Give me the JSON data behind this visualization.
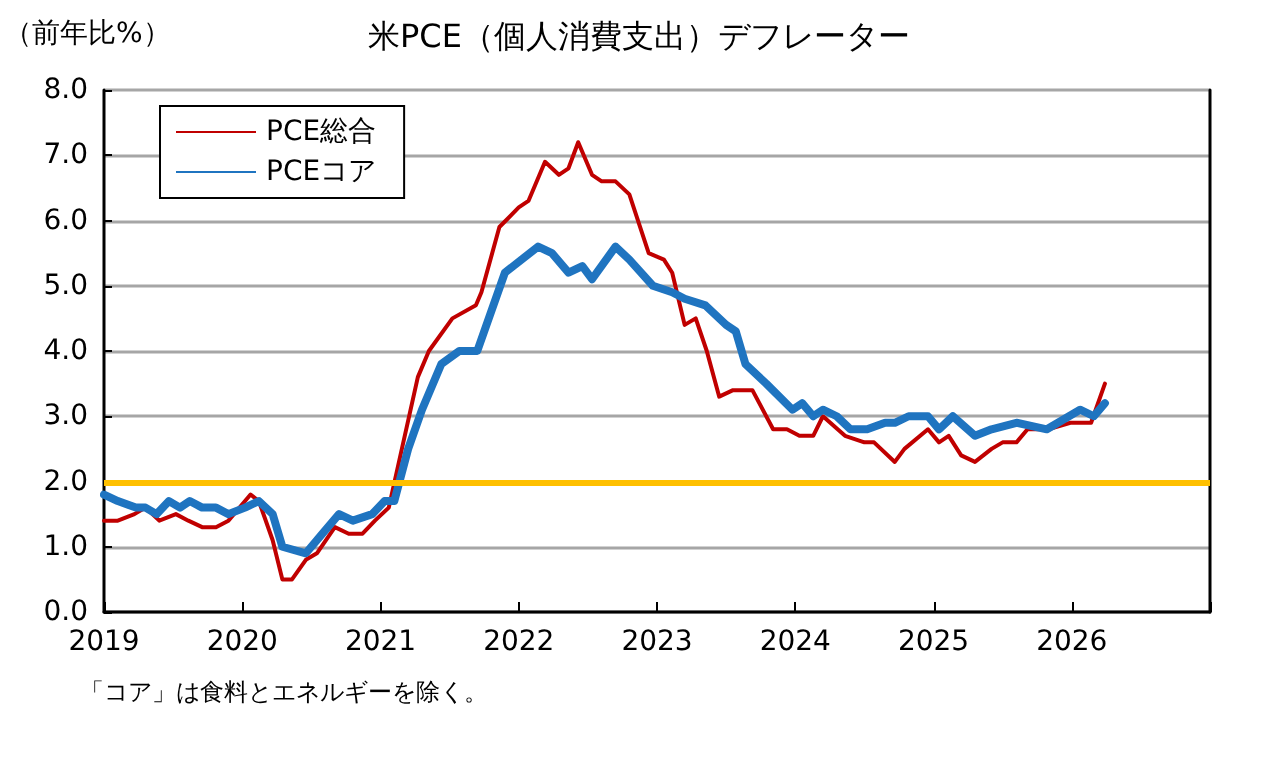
{
  "chart_data": {
    "type": "line",
    "title": "米PCE（個人消費支出）デフレーター",
    "ylabel": "（前年比%）",
    "annotations": [
      "「コア」は食料とエネルギーを除く。"
    ],
    "xlim": [
      2019,
      2027
    ],
    "xticks": [
      2019,
      2020,
      2021,
      2022,
      2023,
      2024,
      2025,
      2026,
      {
        "value": 2027,
        "label": null
      }
    ],
    "ylim": [
      0,
      8
    ],
    "yticks": [
      {
        "value": 0,
        "label": "0.0"
      },
      {
        "value": 1,
        "label": "1.0"
      },
      {
        "value": 2,
        "label": "2.0"
      },
      {
        "value": 3,
        "label": "3.0"
      },
      {
        "value": 4,
        "label": "4.0"
      },
      {
        "value": 5,
        "label": "5.0"
      },
      {
        "value": 6,
        "label": "6.0"
      },
      {
        "value": 7,
        "label": "7.0"
      },
      {
        "value": 8,
        "label": "8.0"
      }
    ],
    "grid": "y",
    "legend": "top left",
    "marker": "none",
    "line_style": "solid",
    "ref_lines": [
      {
        "axis": "y",
        "value": 2,
        "color": "#ffc000"
      }
    ],
    "series": [
      {
        "name": "PCE総合",
        "color": "#c00000",
        "x": [
          2019.0,
          2019.1,
          2019.22,
          2019.3,
          2019.4,
          2019.52,
          2019.61,
          2019.71,
          2019.81,
          2019.9,
          2020.06,
          2020.12,
          2020.22,
          2020.29,
          2020.36,
          2020.46,
          2020.54,
          2020.67,
          2020.77,
          2020.87,
          2020.96,
          2021.06,
          2021.27,
          2021.35,
          2021.52,
          2021.69,
          2021.73,
          2021.86,
          2022.0,
          2022.07,
          2022.19,
          2022.29,
          2022.36,
          2022.43,
          2022.53,
          2022.6,
          2022.7,
          2022.8,
          2022.94,
          2023.05,
          2023.11,
          2023.2,
          2023.28,
          2023.36,
          2023.45,
          2023.55,
          2023.69,
          2023.84,
          2023.94,
          2024.03,
          2024.13,
          2024.2,
          2024.36,
          2024.5,
          2024.57,
          2024.72,
          2024.79,
          2024.96,
          2025.04,
          2025.11,
          2025.2,
          2025.3,
          2025.42,
          2025.5,
          2025.6,
          2025.68,
          2025.83,
          2025.99,
          2026.14,
          2026.24
        ],
        "values": [
          1.4,
          1.4,
          1.5,
          1.6,
          1.4,
          1.5,
          1.4,
          1.3,
          1.3,
          1.4,
          1.8,
          1.7,
          1.1,
          0.5,
          0.5,
          0.8,
          0.9,
          1.3,
          1.2,
          1.2,
          1.4,
          1.6,
          3.6,
          4.0,
          4.5,
          4.7,
          4.9,
          5.9,
          6.2,
          6.3,
          6.9,
          6.7,
          6.8,
          7.2,
          6.7,
          6.6,
          6.6,
          6.4,
          5.5,
          5.4,
          5.2,
          4.4,
          4.5,
          4.0,
          3.3,
          3.4,
          3.4,
          2.8,
          2.8,
          2.7,
          2.7,
          3.0,
          2.7,
          2.6,
          2.6,
          2.3,
          2.5,
          2.8,
          2.6,
          2.7,
          2.4,
          2.3,
          2.5,
          2.6,
          2.6,
          2.8,
          2.8,
          2.9,
          2.9,
          3.5
        ]
      },
      {
        "name": "PCEコア",
        "color": "#1f74c0",
        "x": [
          2019.0,
          2019.1,
          2019.23,
          2019.3,
          2019.38,
          2019.47,
          2019.55,
          2019.62,
          2019.71,
          2019.81,
          2019.9,
          2020.02,
          2020.12,
          2020.22,
          2020.29,
          2020.46,
          2020.58,
          2020.7,
          2020.8,
          2020.94,
          2021.03,
          2021.1,
          2021.2,
          2021.3,
          2021.44,
          2021.57,
          2021.7,
          2021.9,
          2022.14,
          2022.24,
          2022.36,
          2022.46,
          2022.53,
          2022.7,
          2022.8,
          2022.97,
          2023.11,
          2023.2,
          2023.35,
          2023.5,
          2023.57,
          2023.64,
          2023.79,
          2023.98,
          2024.05,
          2024.13,
          2024.2,
          2024.3,
          2024.4,
          2024.52,
          2024.65,
          2024.72,
          2024.82,
          2024.96,
          2025.04,
          2025.14,
          2025.3,
          2025.42,
          2025.6,
          2025.82,
          2026.06,
          2026.16,
          2026.24
        ],
        "values": [
          1.8,
          1.7,
          1.6,
          1.6,
          1.5,
          1.7,
          1.6,
          1.7,
          1.6,
          1.6,
          1.5,
          1.6,
          1.7,
          1.5,
          1.0,
          0.9,
          1.2,
          1.5,
          1.4,
          1.5,
          1.7,
          1.7,
          2.5,
          3.1,
          3.8,
          4.0,
          4.0,
          5.2,
          5.6,
          5.5,
          5.2,
          5.3,
          5.1,
          5.6,
          5.4,
          5.0,
          4.9,
          4.8,
          4.7,
          4.4,
          4.3,
          3.8,
          3.5,
          3.1,
          3.2,
          3.0,
          3.1,
          3.0,
          2.8,
          2.8,
          2.9,
          2.9,
          3.0,
          3.0,
          2.8,
          3.0,
          2.7,
          2.8,
          2.9,
          2.8,
          3.1,
          3.0,
          3.2
        ]
      }
    ]
  }
}
